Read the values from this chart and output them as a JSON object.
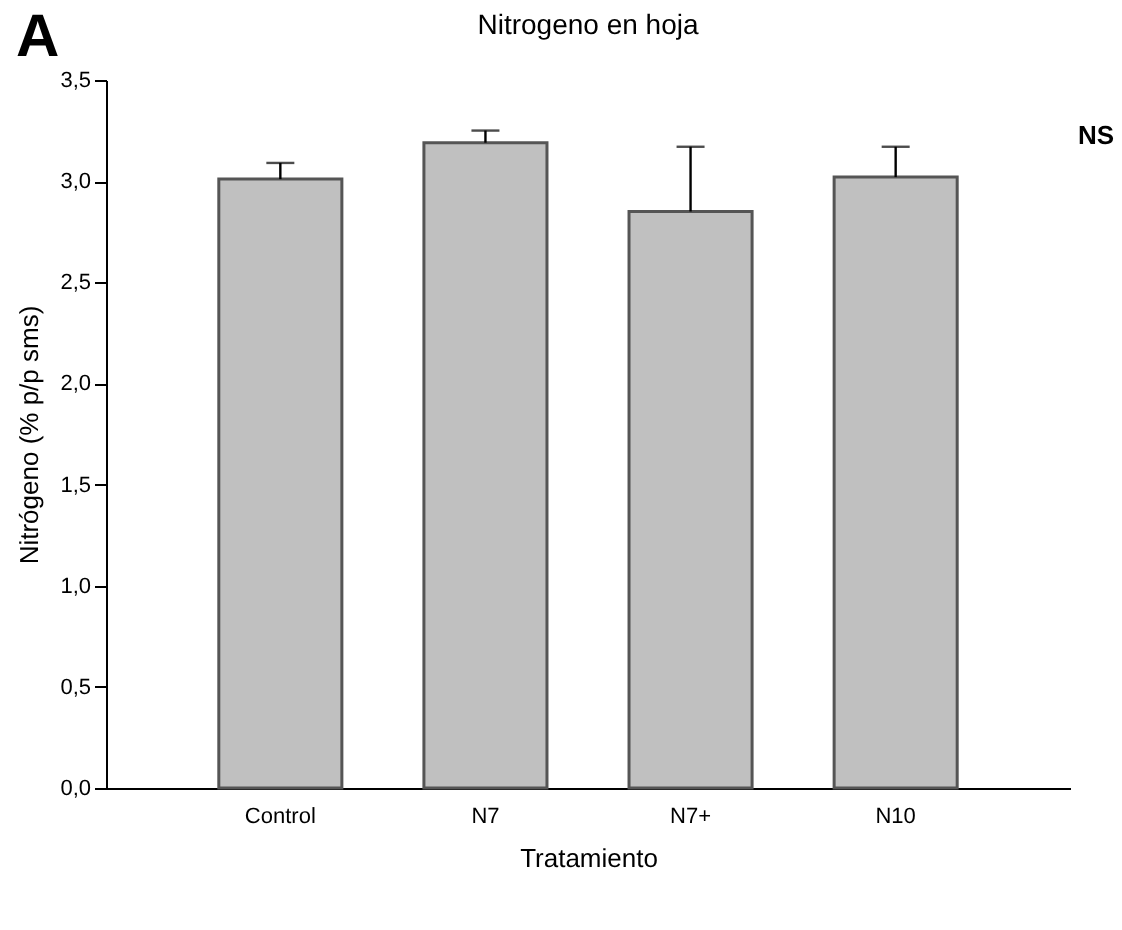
{
  "chart_data": {
    "type": "bar",
    "title": "Nitrogeno en hoja",
    "xlabel": "Tratamiento",
    "ylabel": "Nitrógeno (% p/p sms)",
    "categories": [
      "Control",
      "N7",
      "N7+",
      "N10"
    ],
    "values": [
      3.01,
      3.19,
      2.85,
      3.02
    ],
    "errors": [
      [
        3.01,
        3.09
      ],
      [
        3.19,
        3.25
      ],
      [
        2.85,
        3.17
      ],
      [
        3.02,
        3.17
      ]
    ],
    "color": "#c0c0c0",
    "ylim": [
      0,
      3.5
    ],
    "yticks": [
      {
        "value": 0,
        "label": "0,0"
      },
      {
        "value": 0.5,
        "label": "0,5"
      },
      {
        "value": 1,
        "label": "1,0"
      },
      {
        "value": 1.5,
        "label": "1,5"
      },
      {
        "value": 2,
        "label": "2,0"
      },
      {
        "value": 2.5,
        "label": "2,5"
      },
      {
        "value": 3,
        "label": "3,0"
      },
      {
        "value": 3.5,
        "label": "3,5"
      }
    ],
    "annotations": [
      "A",
      "NS"
    ]
  }
}
